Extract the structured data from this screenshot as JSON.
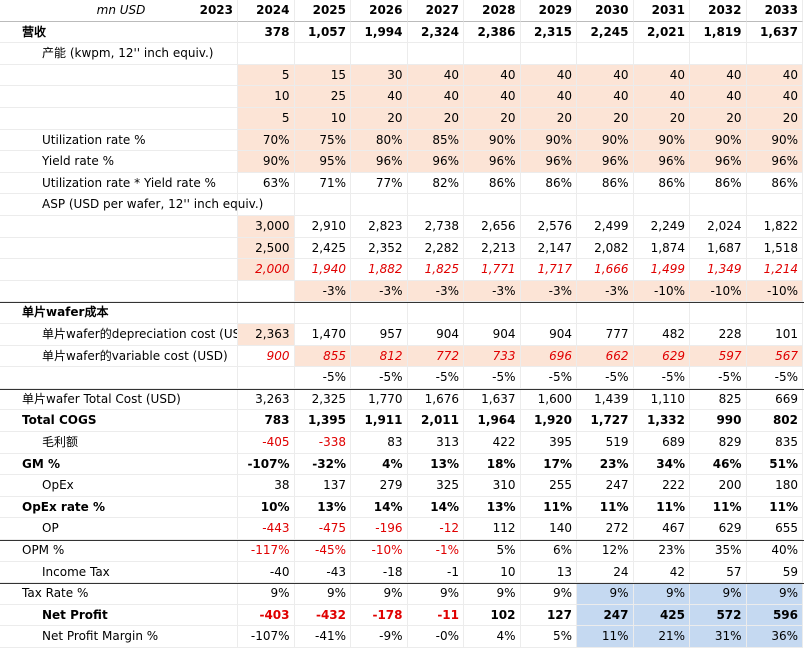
{
  "header": {
    "unit": "mn USD",
    "years": [
      "2023",
      "2024",
      "2025",
      "2026",
      "2027",
      "2028",
      "2029",
      "2030",
      "2031",
      "2032",
      "2033"
    ]
  },
  "rows": [
    {
      "label": "营收",
      "cells": [
        null,
        "378",
        "1,057",
        "1,994",
        "2,324",
        "2,386",
        "2,315",
        "2,245",
        "2,021",
        "1,819",
        "1,637"
      ]
    },
    {
      "label": "产能 (kwpm, 12'' inch equiv.)",
      "cells": [
        null,
        null,
        null,
        null,
        null,
        null,
        null,
        null,
        null,
        null,
        null
      ]
    },
    {
      "label": null,
      "cells": [
        null,
        "5",
        "15",
        "30",
        "40",
        "40",
        "40",
        "40",
        "40",
        "40",
        "40"
      ]
    },
    {
      "label": null,
      "cells": [
        null,
        "10",
        "25",
        "40",
        "40",
        "40",
        "40",
        "40",
        "40",
        "40",
        "40"
      ]
    },
    {
      "label": null,
      "cells": [
        null,
        "5",
        "10",
        "20",
        "20",
        "20",
        "20",
        "20",
        "20",
        "20",
        "20"
      ]
    },
    {
      "label": "Utilization rate %",
      "cells": [
        null,
        "70%",
        "75%",
        "80%",
        "85%",
        "90%",
        "90%",
        "90%",
        "90%",
        "90%",
        "90%"
      ]
    },
    {
      "label": "Yield rate %",
      "cells": [
        null,
        "90%",
        "95%",
        "96%",
        "96%",
        "96%",
        "96%",
        "96%",
        "96%",
        "96%",
        "96%"
      ]
    },
    {
      "label": "Utilization rate * Yield rate %",
      "cells": [
        null,
        "63%",
        "71%",
        "77%",
        "82%",
        "86%",
        "86%",
        "86%",
        "86%",
        "86%",
        "86%"
      ]
    },
    {
      "label": "ASP (USD per wafer, 12'' inch equiv.)",
      "cells": [
        null,
        null,
        null,
        null,
        null,
        null,
        null,
        null,
        null,
        null,
        null
      ]
    },
    {
      "label": null,
      "cells": [
        null,
        "3,000",
        "2,910",
        "2,823",
        "2,738",
        "2,656",
        "2,576",
        "2,499",
        "2,249",
        "2,024",
        "1,822"
      ]
    },
    {
      "label": null,
      "cells": [
        null,
        "2,500",
        "2,425",
        "2,352",
        "2,282",
        "2,213",
        "2,147",
        "2,082",
        "1,874",
        "1,687",
        "1,518"
      ]
    },
    {
      "label": null,
      "cells": [
        null,
        "2,000",
        "1,940",
        "1,882",
        "1,825",
        "1,771",
        "1,717",
        "1,666",
        "1,499",
        "1,349",
        "1,214"
      ]
    },
    {
      "label": null,
      "cells": [
        null,
        null,
        "-3%",
        "-3%",
        "-3%",
        "-3%",
        "-3%",
        "-3%",
        "-10%",
        "-10%",
        "-10%"
      ]
    },
    {
      "label": "单片wafer成本",
      "cells": [
        null,
        null,
        null,
        null,
        null,
        null,
        null,
        null,
        null,
        null,
        null
      ]
    },
    {
      "label": "单片wafer的depreciation cost (USD)",
      "cells": [
        null,
        "2,363",
        "1,470",
        "957",
        "904",
        "904",
        "904",
        "777",
        "482",
        "228",
        "101"
      ]
    },
    {
      "label": "单片wafer的variable cost (USD)",
      "cells": [
        null,
        "900",
        "855",
        "812",
        "772",
        "733",
        "696",
        "662",
        "629",
        "597",
        "567"
      ]
    },
    {
      "label": null,
      "cells": [
        null,
        null,
        "-5%",
        "-5%",
        "-5%",
        "-5%",
        "-5%",
        "-5%",
        "-5%",
        "-5%",
        "-5%"
      ]
    },
    {
      "label": "单片wafer Total Cost (USD)",
      "cells": [
        null,
        "3,263",
        "2,325",
        "1,770",
        "1,676",
        "1,637",
        "1,600",
        "1,439",
        "1,110",
        "825",
        "669"
      ]
    },
    {
      "label": "Total COGS",
      "cells": [
        null,
        "783",
        "1,395",
        "1,911",
        "2,011",
        "1,964",
        "1,920",
        "1,727",
        "1,332",
        "990",
        "802"
      ]
    },
    {
      "label": "毛利额",
      "cells": [
        null,
        "-405",
        "-338",
        "83",
        "313",
        "422",
        "395",
        "519",
        "689",
        "829",
        "835"
      ]
    },
    {
      "label": "GM %",
      "cells": [
        null,
        "-107%",
        "-32%",
        "4%",
        "13%",
        "18%",
        "17%",
        "23%",
        "34%",
        "46%",
        "51%"
      ]
    },
    {
      "label": "OpEx",
      "cells": [
        null,
        "38",
        "137",
        "279",
        "325",
        "310",
        "255",
        "247",
        "222",
        "200",
        "180"
      ]
    },
    {
      "label": "OpEx rate %",
      "cells": [
        null,
        "10%",
        "13%",
        "14%",
        "14%",
        "13%",
        "11%",
        "11%",
        "11%",
        "11%",
        "11%"
      ]
    },
    {
      "label": "OP",
      "cells": [
        null,
        "-443",
        "-475",
        "-196",
        "-12",
        "112",
        "140",
        "272",
        "467",
        "629",
        "655"
      ]
    },
    {
      "label": "OPM %",
      "cells": [
        null,
        "-117%",
        "-45%",
        "-10%",
        "-1%",
        "5%",
        "6%",
        "12%",
        "23%",
        "35%",
        "40%"
      ]
    },
    {
      "label": "Income Tax",
      "cells": [
        null,
        "-40",
        "-43",
        "-18",
        "-1",
        "10",
        "13",
        "24",
        "42",
        "57",
        "59"
      ]
    },
    {
      "label": "Tax Rate %",
      "cells": [
        null,
        "9%",
        "9%",
        "9%",
        "9%",
        "9%",
        "9%",
        "9%",
        "9%",
        "9%",
        "9%"
      ]
    },
    {
      "label": "Net Profit",
      "cells": [
        null,
        "-403",
        "-432",
        "-178",
        "-11",
        "102",
        "127",
        "247",
        "425",
        "572",
        "596"
      ]
    },
    {
      "label": "Net Profit Margin %",
      "cells": [
        null,
        "-107%",
        "-41%",
        "-9%",
        "-0%",
        "4%",
        "5%",
        "11%",
        "21%",
        "31%",
        "36%"
      ]
    }
  ]
}
